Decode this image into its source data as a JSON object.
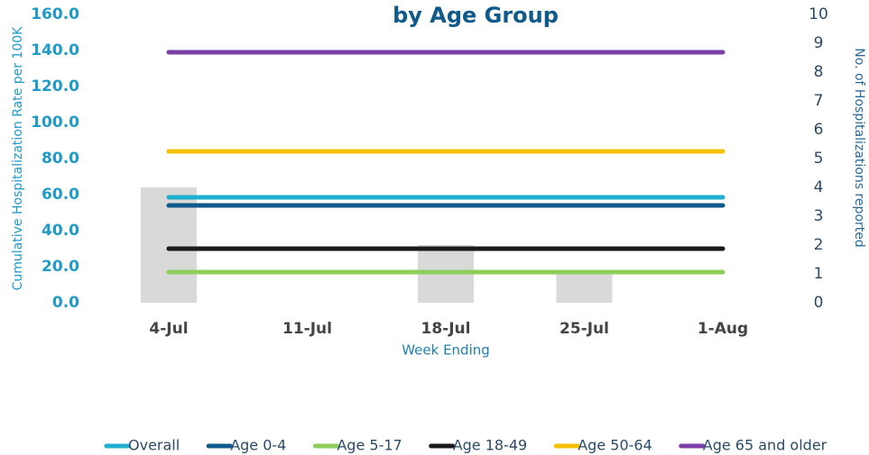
{
  "chart_data": {
    "type": "line",
    "title": "by Age Group",
    "x_label": "Week Ending",
    "y_label": "Cumulative Hospitalization Rate per 100K",
    "y2_label": "No. of Hospitalizations reported",
    "categories": [
      "4-Jul",
      "11-Jul",
      "18-Jul",
      "25-Jul",
      "1-Aug"
    ],
    "ylim": [
      0,
      160
    ],
    "yticks": [
      {
        "value": 0,
        "label": "0.0"
      },
      {
        "value": 20,
        "label": "20.0"
      },
      {
        "value": 40,
        "label": "40.0"
      },
      {
        "value": 60,
        "label": "60.0"
      },
      {
        "value": 80,
        "label": "80.0"
      },
      {
        "value": 100,
        "label": "100.0"
      },
      {
        "value": 120,
        "label": "120.0"
      },
      {
        "value": 140,
        "label": "140.0"
      },
      {
        "value": 160,
        "label": "160.0"
      }
    ],
    "y2lim": [
      0,
      10
    ],
    "y2ticks": [
      0,
      1,
      2,
      3,
      4,
      5,
      6,
      7,
      8,
      9,
      10
    ],
    "series": [
      {
        "type": "bar",
        "axis": "y2",
        "color": "#d9d9d9",
        "values": [
          4,
          0,
          2,
          1,
          0
        ]
      },
      {
        "name": "Overall",
        "color": "#1fb0d0",
        "values": [
          58.5,
          58.5,
          58.5,
          58.5,
          58.5
        ]
      },
      {
        "name": "Age 0-4",
        "color": "#0e5a8a",
        "values": [
          54,
          54,
          54,
          54,
          54
        ]
      },
      {
        "name": "Age 5-17",
        "color": "#8dcf5a",
        "values": [
          17,
          17,
          17,
          17,
          17
        ]
      },
      {
        "name": "Age 18-49",
        "color": "#1a1a1a",
        "values": [
          30,
          30,
          30,
          30,
          30
        ]
      },
      {
        "name": "Age 50-64",
        "color": "#f5c000",
        "values": [
          84,
          84,
          84,
          84,
          84
        ]
      },
      {
        "name": "Age 65 and older",
        "color": "#7b3fa6",
        "values": [
          139,
          139,
          139,
          139,
          139
        ]
      }
    ]
  }
}
